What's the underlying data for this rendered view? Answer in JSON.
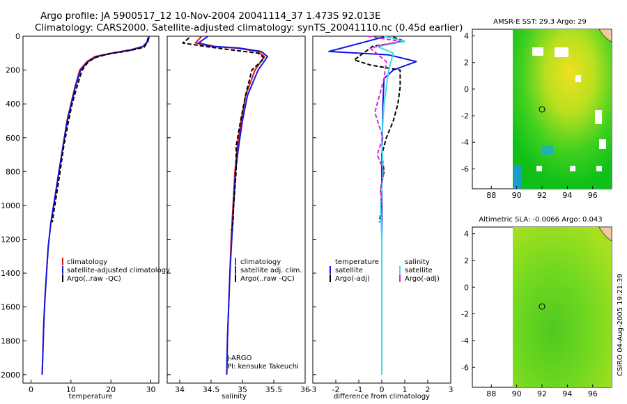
{
  "header": {
    "line1": "Argo profile: JA 5900517_12 10-Nov-2004 20041114_37 1.473S 92.013E",
    "line2": "Climatology: CARS2000. Satellite-adjusted climatology: synTS_20041110.nc (0.45d earlier)"
  },
  "side_stamp": "CSIRO 04-Aug-2005 19:21:39",
  "colors": {
    "climatology": "#e01010",
    "satellite": "#1018e0",
    "argo": "#000000",
    "salinity": "#30e0e8",
    "argo_salinity": "#e020e0",
    "land": "#f5c9a0"
  },
  "chart_data": [
    {
      "type": "line",
      "xlabel": "temperature",
      "ylim": [
        2000,
        0
      ],
      "xlim": [
        -2,
        32
      ],
      "xticks": [
        0,
        10,
        20,
        30
      ],
      "yticks": [
        0,
        200,
        400,
        600,
        800,
        1000,
        1200,
        1400,
        1600,
        1800,
        2000
      ],
      "legend": {
        "placement": "right",
        "entries": [
          "climatology",
          "satellite-adjusted climatology",
          "Argo(..raw -QC)"
        ]
      },
      "series": [
        {
          "name": "climatology",
          "color": "#e01010",
          "x": [
            29.5,
            29.2,
            28.0,
            25.0,
            20.0,
            16.0,
            14.0,
            12.2,
            11.0,
            10.0,
            9.0,
            8.0,
            7.0,
            6.0,
            5.0,
            4.3,
            3.9,
            3.5,
            3.2,
            3.0,
            2.8
          ],
          "y": [
            0,
            30,
            60,
            80,
            100,
            120,
            150,
            200,
            300,
            400,
            500,
            650,
            800,
            950,
            1100,
            1250,
            1400,
            1550,
            1700,
            1850,
            2000
          ]
        },
        {
          "name": "satellite-adjusted climatology",
          "color": "#1018e0",
          "x": [
            29.6,
            29.3,
            28.2,
            25.5,
            20.5,
            16.5,
            14.3,
            12.4,
            11.1,
            10.1,
            9.1,
            8.0,
            7.0,
            6.0,
            5.0,
            4.3,
            3.9,
            3.5,
            3.2,
            3.0,
            2.8
          ],
          "y": [
            0,
            30,
            60,
            80,
            100,
            120,
            150,
            200,
            300,
            400,
            500,
            650,
            800,
            950,
            1100,
            1250,
            1400,
            1550,
            1700,
            1850,
            2000
          ]
        },
        {
          "name": "Argo(..raw -QC)",
          "color": "#000000",
          "dashed": true,
          "x": [
            29.3,
            29.0,
            28.3,
            24.8,
            19.5,
            16.2,
            14.4,
            12.8,
            11.5,
            10.3,
            9.4,
            8.2,
            7.3,
            6.3,
            5.3
          ],
          "y": [
            10,
            40,
            65,
            85,
            105,
            125,
            150,
            200,
            300,
            400,
            500,
            650,
            800,
            950,
            1100
          ]
        }
      ],
      "annotations": []
    },
    {
      "type": "line",
      "xlabel": "salinity",
      "ylim": [
        2000,
        0
      ],
      "xlim": [
        33.8,
        36
      ],
      "xticks": [
        34,
        34.5,
        35,
        35.5,
        36
      ],
      "legend": {
        "placement": "right",
        "entries": [
          "climatology",
          "satellite adj. clim.",
          "Argo(..raw -QC)"
        ]
      },
      "series": [
        {
          "name": "climatology",
          "color": "#e01010",
          "x": [
            34.35,
            34.25,
            34.5,
            34.9,
            35.25,
            35.35,
            35.2,
            35.05,
            34.98,
            34.92,
            34.88,
            34.85,
            34.82,
            34.8,
            34.78,
            34.76,
            34.75
          ],
          "y": [
            0,
            40,
            60,
            70,
            90,
            120,
            200,
            350,
            500,
            650,
            800,
            1000,
            1200,
            1400,
            1600,
            1800,
            2000
          ]
        },
        {
          "name": "satellite adj. clim.",
          "color": "#1018e0",
          "x": [
            34.45,
            34.3,
            34.55,
            34.95,
            35.3,
            35.4,
            35.25,
            35.08,
            35.0,
            34.94,
            34.89,
            34.86,
            34.83,
            34.8,
            34.78,
            34.76,
            34.75
          ],
          "y": [
            0,
            40,
            60,
            70,
            90,
            120,
            200,
            350,
            500,
            650,
            800,
            1000,
            1200,
            1400,
            1600,
            1800,
            2000
          ]
        },
        {
          "name": "Argo(..raw -QC)",
          "color": "#000000",
          "dashed": true,
          "x": [
            34.15,
            34.05,
            34.4,
            34.8,
            35.25,
            35.35,
            35.15,
            35.05,
            34.97,
            34.9,
            34.9,
            34.86,
            34.85,
            34.83
          ],
          "y": [
            10,
            40,
            60,
            80,
            100,
            130,
            200,
            350,
            500,
            650,
            800,
            1000,
            1100,
            1150
          ]
        }
      ],
      "annotations": [
        "J-ARGO",
        "PI: kensuke Takeuchi"
      ]
    },
    {
      "type": "line",
      "xlabel": "difference from climatology",
      "ylim": [
        2000,
        0
      ],
      "xlim": [
        -3,
        3
      ],
      "xticks": [
        -3,
        -2,
        -1,
        0,
        1,
        2,
        3
      ],
      "legend": {
        "placement": "right",
        "entries": [
          "temperature",
          "satellite",
          "Argo(-adj)",
          "salinity",
          "satellite",
          "Argo(-adj)"
        ]
      },
      "series": [
        {
          "name": "satellite",
          "color": "#1018e0",
          "x": [
            0.2,
            -0.9,
            -2.3,
            0.3,
            1.5,
            0.5,
            0.1,
            0.05,
            0.02,
            0.0,
            0.0,
            0.0,
            0.0,
            0.0
          ],
          "y": [
            0,
            40,
            90,
            110,
            150,
            200,
            250,
            400,
            600,
            800,
            1000,
            1400,
            1800,
            2000
          ]
        },
        {
          "name": "Argo(-adj)",
          "color": "#000000",
          "dashed": true,
          "x": [
            0.5,
            1.0,
            -0.4,
            -1.2,
            -0.5,
            0.8,
            0.8,
            0.7,
            0.5,
            0.2,
            0.0,
            0.1,
            -0.05,
            0.0,
            -0.1
          ],
          "y": [
            5,
            30,
            60,
            140,
            170,
            200,
            300,
            400,
            500,
            600,
            700,
            800,
            900,
            1000,
            1100
          ]
        },
        {
          "name": "salinity satellite",
          "color": "#30e0e8",
          "x": [
            0.1,
            1.0,
            -0.2,
            0.5,
            0.3,
            0.1,
            0.0,
            0.05,
            -0.05,
            0.0,
            0.0,
            0.0,
            0.0
          ],
          "y": [
            0,
            30,
            60,
            100,
            200,
            400,
            600,
            800,
            1000,
            1200,
            1400,
            1800,
            2000
          ]
        },
        {
          "name": "salinity Argo(-adj)",
          "color": "#e020e0",
          "dashed": true,
          "x": [
            -0.6,
            0.8,
            -0.5,
            0.2,
            0.1,
            -0.3,
            0.05,
            -0.2,
            0.1,
            -0.05,
            0.0
          ],
          "y": [
            0,
            30,
            70,
            150,
            250,
            450,
            600,
            700,
            800,
            900,
            1000
          ]
        }
      ],
      "annotations": []
    },
    {
      "type": "heatmap",
      "title": "AMSR-E SST: 29.3 Argo: 29",
      "xlim": [
        86.5,
        97.5
      ],
      "ylim": [
        -7.5,
        4.5
      ],
      "xticks": [
        88,
        90,
        92,
        94,
        96
      ],
      "yticks": [
        -6,
        -4,
        -2,
        0,
        2,
        4
      ],
      "marker": {
        "x": 92.013,
        "y": -1.473
      }
    },
    {
      "type": "heatmap",
      "title": "Altimetric SLA: -0.0066 Argo: 0.043",
      "xlim": [
        86.5,
        97.5
      ],
      "ylim": [
        -7.5,
        4.5
      ],
      "xticks": [
        88,
        90,
        92,
        94,
        96
      ],
      "yticks": [
        -6,
        -4,
        -2,
        0,
        2,
        4
      ],
      "marker": {
        "x": 92.013,
        "y": -1.473
      }
    }
  ]
}
